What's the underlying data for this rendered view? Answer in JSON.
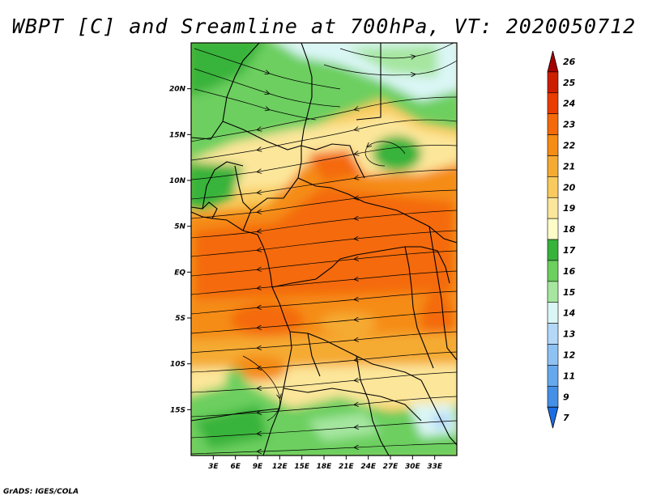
{
  "title": "WBPT [C] and Sreamline at 700hPa, VT: 2020050712",
  "footer": "GrADS: IGES/COLA",
  "map": {
    "lon_range": [
      0,
      36
    ],
    "lat_range": [
      -20,
      25
    ],
    "lon_ticks": [
      "3E",
      "6E",
      "9E",
      "12E",
      "15E",
      "18E",
      "21E",
      "24E",
      "27E",
      "30E",
      "33E"
    ],
    "lat_ticks": [
      "20N",
      "15N",
      "10N",
      "5N",
      "EQ",
      "5S",
      "10S",
      "15S"
    ]
  },
  "colorbar": {
    "levels": [
      "26",
      "25",
      "24",
      "23",
      "22",
      "21",
      "20",
      "19",
      "18",
      "17",
      "16",
      "15",
      "14",
      "13",
      "12",
      "11",
      "9",
      "7"
    ],
    "colors": [
      "#a50000",
      "#cd1e00",
      "#ea3d00",
      "#f46a0a",
      "#f58c14",
      "#f5aa32",
      "#f9ca5e",
      "#fce69a",
      "#fefcc8",
      "#37b33b",
      "#6ccf5e",
      "#a6e6a0",
      "#daf6f5",
      "#b3d8f8",
      "#8ec2f2",
      "#66a8ec",
      "#4590e6",
      "#1c6ee4"
    ]
  }
}
